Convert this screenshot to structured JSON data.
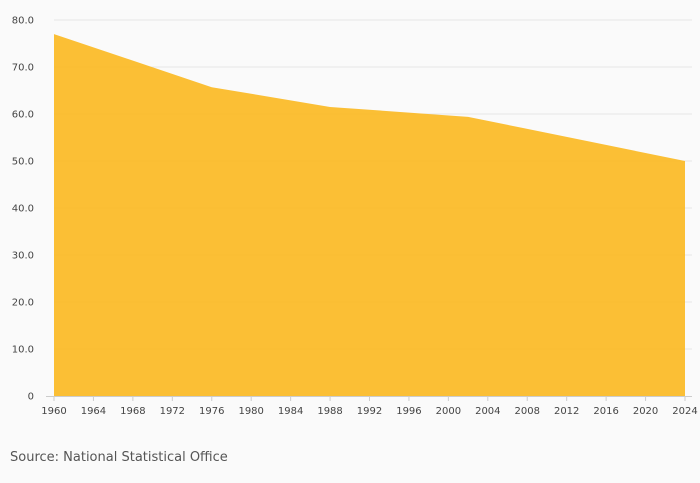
{
  "chart_data": {
    "type": "area",
    "title": "",
    "xlabel": "",
    "ylabel": "",
    "x": [
      1960,
      1976,
      1988,
      2002,
      2024
    ],
    "series": [
      {
        "values": [
          77.0,
          65.7,
          61.5,
          59.4,
          50.0
        ]
      }
    ],
    "xlim": [
      1960,
      2024
    ],
    "ylim": [
      0,
      80
    ],
    "x_ticks": [
      "1960",
      "1964",
      "1968",
      "1972",
      "1976",
      "1980",
      "1984",
      "1988",
      "1992",
      "1996",
      "2000",
      "2004",
      "2008",
      "2012",
      "2016",
      "2020",
      "2024"
    ],
    "y_ticks": [
      "0",
      "10.0",
      "20.0",
      "30.0",
      "40.0",
      "50.0",
      "60.0",
      "70.0",
      "80.0"
    ],
    "grid": true,
    "legend": "none",
    "colors": {
      "fill": "#fbbc2a",
      "grid": "#e6e6e6",
      "axis": "#cccccc",
      "background": "#fafafa"
    }
  },
  "source": "Source: National Statistical Office"
}
